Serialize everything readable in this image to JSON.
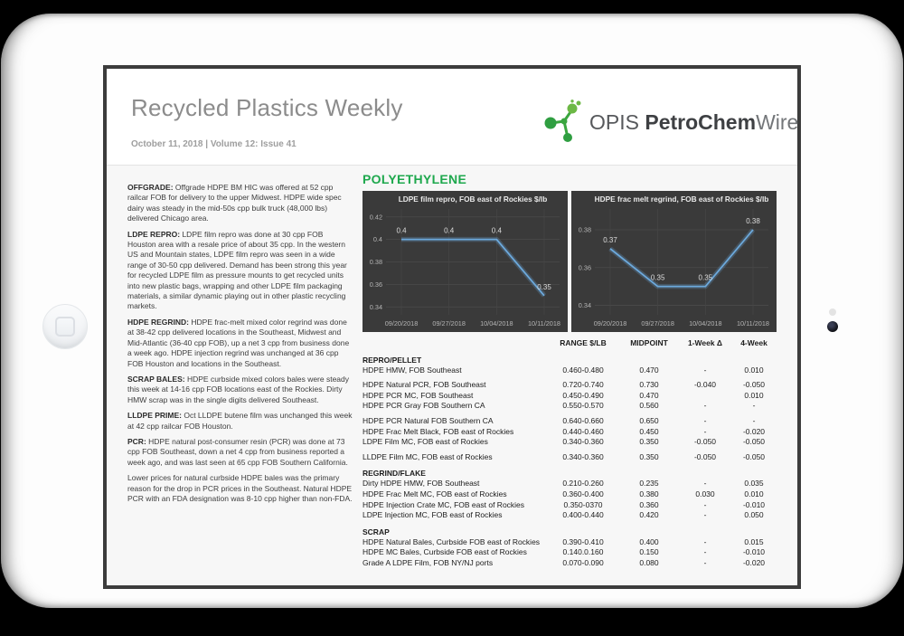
{
  "header": {
    "title": "Recycled Plastics Weekly",
    "dateline": "October 11, 2018 | Volume 12: Issue 41",
    "logo": {
      "prefix": "OPIS ",
      "bold": "PetroChem",
      "light": "Wire"
    }
  },
  "section_heading": "POLYETHYLENE",
  "articles": [
    {
      "lead": "OFFGRADE:",
      "text": "Offgrade HDPE BM HIC was offered at 52 cpp railcar FOB for delivery to the upper Midwest. HDPE wide spec dairy was steady in the mid-50s cpp bulk truck (48,000 lbs) delivered Chicago area."
    },
    {
      "lead": "LDPE REPRO:",
      "text": "LDPE film repro was done at 30 cpp FOB Houston area with a resale price of about 35 cpp. In the western US and Mountain states, LDPE film repro was seen in a wide range of 30-50 cpp delivered. Demand has been strong this year for recycled LDPE film as pressure mounts to get recycled units into new plastic bags, wrapping and other LDPE film packaging materials, a similar dynamic playing out in other plastic recycling markets."
    },
    {
      "lead": "HDPE REGRIND:",
      "text": "HDPE frac-melt mixed color regrind was done at 38-42 cpp delivered locations in the Southeast, Midwest and Mid-Atlantic (36-40 cpp FOB), up a net 3 cpp from business done a week ago. HDPE injection regrind was unchanged at 36 cpp FOB Houston and locations in the Southeast."
    },
    {
      "lead": "SCRAP BALES:",
      "text": "HDPE curbside mixed colors bales were steady this week at 14-16 cpp FOB locations east of the Rockies. Dirty HMW scrap was in the single digits delivered Southeast."
    },
    {
      "lead": "LLDPE PRIME:",
      "text": "Oct LLDPE butene film was unchanged this week at 42 cpp railcar FOB Houston."
    },
    {
      "lead": "PCR:",
      "text": "HDPE natural post-consumer resin (PCR) was done at 73 cpp FOB Southeast, down a net 4 cpp from business reported a week ago, and was last seen at 65 cpp FOB Southern California."
    },
    {
      "lead": "",
      "text": "Lower prices for natural curbside HDPE bales was the primary reason for the drop in PCR prices in the Southeast. Natural HDPE PCR with an FDA designation was 8-10 cpp higher than non-FDA."
    }
  ],
  "chart_data": [
    {
      "type": "line",
      "title": "LDPE film repro,  FOB east of Rockies $/lb",
      "x": [
        "09/20/2018",
        "09/27/2018",
        "10/04/2018",
        "10/11/2018"
      ],
      "values": [
        0.4,
        0.4,
        0.4,
        0.35
      ],
      "point_labels": [
        "0.4",
        "0.4",
        "0.4",
        "0.35"
      ],
      "yticks": [
        0.42,
        0.4,
        0.38,
        0.36,
        0.34
      ],
      "ytick_labels": [
        "0.42",
        "0.4",
        "0.38",
        "0.36",
        "0.34"
      ],
      "ylim": [
        0.333,
        0.427
      ],
      "grid": true,
      "legend": "none",
      "bg": "#3a3a3a",
      "line_color": "#6ca9dc"
    },
    {
      "type": "line",
      "title": "HDPE frac melt regrind,  FOB east of Rockies $/lb",
      "x": [
        "09/20/2018",
        "09/27/2018",
        "10/04/2018",
        "10/11/2018"
      ],
      "values": [
        0.37,
        0.35,
        0.35,
        0.38
      ],
      "point_labels": [
        "0.37",
        "0.35",
        "0.35",
        "0.38"
      ],
      "yticks": [
        0.38,
        0.36,
        0.34
      ],
      "ytick_labels": [
        "0.38",
        "0.36",
        "0.34"
      ],
      "ylim": [
        0.335,
        0.391
      ],
      "grid": true,
      "legend": "none",
      "bg": "#3a3a3a",
      "line_color": "#6ca9dc"
    }
  ],
  "table": {
    "headers": [
      "RANGE $/LB",
      "MIDPOINT",
      "1-Week Δ",
      "4-Week"
    ],
    "sections": [
      {
        "name": "REPRO/PELLET",
        "groups": [
          [
            [
              "HDPE HMW, FOB Southeast",
              "0.460-0.480",
              "0.470",
              "-",
              "0.010"
            ]
          ],
          [
            [
              "HDPE Natural PCR, FOB Southeast",
              "0.720-0.740",
              "0.730",
              "-0.040",
              "-0.050"
            ],
            [
              "HDPE PCR MC, FOB Southeast",
              "0.450-0.490",
              "0.470",
              "",
              "0.010"
            ],
            [
              "HDPE PCR Gray FOB Southern CA",
              "0.550-0.570",
              "0.560",
              "-",
              "-"
            ]
          ],
          [
            [
              "HDPE PCR Natural FOB Southern CA",
              "0.640-0.660",
              "0.650",
              "-",
              "-"
            ],
            [
              "HDPE Frac Melt Black, FOB east of Rockies",
              "0.440-0.460",
              "0.450",
              "-",
              "-0.020"
            ],
            [
              "LDPE Film MC, FOB east of Rockies",
              "0.340-0.360",
              "0.350",
              "-0.050",
              "-0.050"
            ]
          ],
          [
            [
              "LLDPE Film MC, FOB east of Rockies",
              "0.340-0.360",
              "0.350",
              "-0.050",
              "-0.050"
            ]
          ]
        ]
      },
      {
        "name": "REGRIND/FLAKE",
        "groups": [
          [
            [
              "Dirty HDPE HMW, FOB Southeast",
              "0.210-0.260",
              "0.235",
              "-",
              "0.035"
            ],
            [
              "HDPE Frac Melt MC, FOB east of Rockies",
              "0.360-0.400",
              "0.380",
              "0.030",
              "0.010"
            ],
            [
              "HDPE Injection Crate MC, FOB east of Rockies",
              "0.350-0370",
              "0.360",
              "-",
              "-0.010"
            ],
            [
              "LDPE Injection MC, FOB east of Rockies",
              "0.400-0.440",
              "0.420",
              "-",
              "0.050"
            ]
          ]
        ]
      },
      {
        "name": "SCRAP",
        "groups": [
          [
            [
              "HDPE Natural Bales, Curbside FOB east of Rockies",
              "0.390-0.410",
              "0.400",
              "-",
              "0.015"
            ],
            [
              "HDPE MC Bales, Curbside FOB east of Rockies",
              "0.140.0.160",
              "0.150",
              "-",
              "-0.010"
            ],
            [
              "Grade A LDPE Film, FOB NY/NJ ports",
              "0.070-0.090",
              "0.080",
              "-",
              "-0.020"
            ]
          ]
        ]
      }
    ]
  },
  "colors": {
    "accent_green": "#1ea84d",
    "chart_bg": "#3a3a3a",
    "chart_line": "#6ca9dc",
    "chart_grid": "#4b4b4b",
    "logo_green_dark": "#2f9e41",
    "logo_green_light": "#6cb845"
  }
}
